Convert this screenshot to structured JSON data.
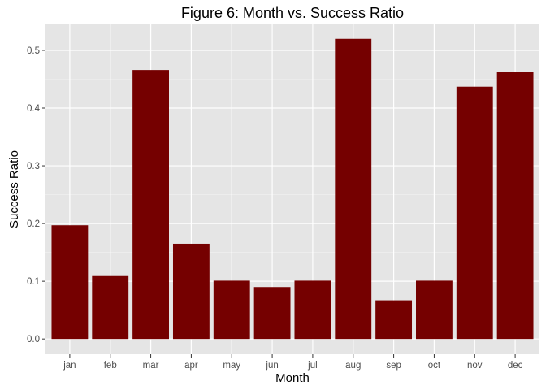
{
  "chart_data": {
    "type": "bar",
    "title": "Figure 6: Month vs. Success Ratio",
    "xlabel": "Month",
    "ylabel": "Success Ratio",
    "categories": [
      "jan",
      "feb",
      "mar",
      "apr",
      "may",
      "jun",
      "jul",
      "aug",
      "sep",
      "oct",
      "nov",
      "dec"
    ],
    "values": [
      0.197,
      0.109,
      0.466,
      0.165,
      0.101,
      0.09,
      0.101,
      0.52,
      0.067,
      0.101,
      0.437,
      0.463
    ],
    "ylim": [
      -0.0265,
      0.545
    ],
    "yticks": [
      0.0,
      0.1,
      0.2,
      0.3,
      0.4,
      0.5
    ],
    "ytick_labels": [
      "0.0",
      "0.1",
      "0.2",
      "0.3",
      "0.4",
      "0.5"
    ],
    "grid": true,
    "legend": "none",
    "colors": {
      "bar": "#750000",
      "panel": "#e5e5e5",
      "grid_major": "#ffffff",
      "grid_minor": "#f2f2f2"
    }
  }
}
